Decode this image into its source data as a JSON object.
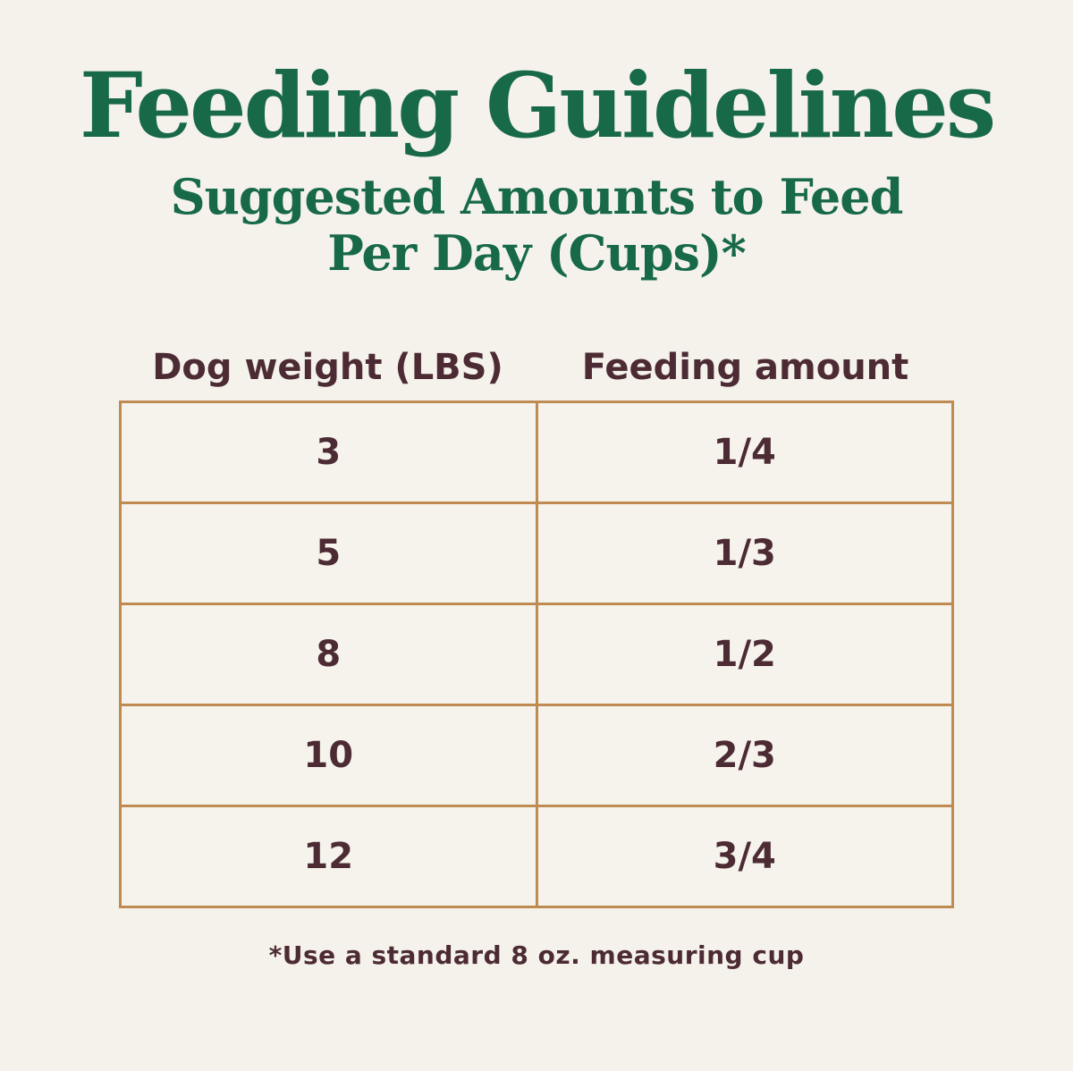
{
  "header": {
    "title": "Feeding Guidelines",
    "subtitle_line1": "Suggested Amounts to Feed",
    "subtitle_line2": "Per Day (Cups)*"
  },
  "colors": {
    "background": "#f4f2ea",
    "title_green": "#176948",
    "text_maroon": "#4d2b34",
    "table_border_tan": "#c08b53"
  },
  "chart_data": {
    "type": "table",
    "title": "Feeding Guidelines",
    "subtitle": "Suggested Amounts to Feed Per Day (Cups)*",
    "columns": [
      "Dog weight (LBS)",
      "Feeding amount"
    ],
    "rows": [
      [
        "3",
        "1/4"
      ],
      [
        "5",
        "1/3"
      ],
      [
        "8",
        "1/2"
      ],
      [
        "10",
        "2/3"
      ],
      [
        "12",
        "3/4"
      ]
    ],
    "footnote": "*Use a standard 8 oz. measuring cup",
    "layout": {
      "grid": "on",
      "columns_count": 2,
      "rows_count": 5
    }
  }
}
